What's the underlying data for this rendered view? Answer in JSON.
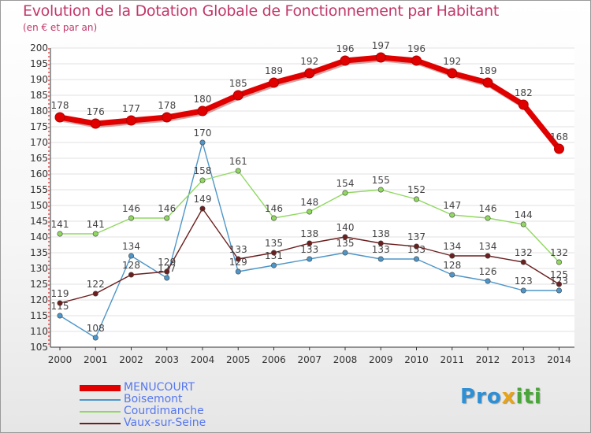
{
  "title": "Evolution de la Dotation Globale de Fonctionnement par Habitant",
  "subtitle": "(en € et par an)",
  "logo": {
    "p1": "Pro",
    "p2": "x",
    "p3": "iti"
  },
  "chart_data": {
    "type": "line",
    "title": "Evolution de la Dotation Globale de Fonctionnement par Habitant",
    "subtitle": "(en € et par an)",
    "xlabel": "",
    "ylabel": "",
    "x": [
      "2000",
      "2001",
      "2002",
      "2003",
      "2004",
      "2005",
      "2006",
      "2007",
      "2008",
      "2009",
      "2010",
      "2011",
      "2012",
      "2013",
      "2014"
    ],
    "ylim": [
      105,
      200
    ],
    "yticks": [
      105,
      110,
      115,
      120,
      125,
      130,
      135,
      140,
      145,
      150,
      155,
      160,
      165,
      170,
      175,
      180,
      185,
      190,
      195,
      200
    ],
    "grid": "horizontal",
    "legend": "bottom-left",
    "series": [
      {
        "name": "MENUCOURT",
        "color": "#e00000",
        "values": [
          178,
          176,
          177,
          178,
          180,
          185,
          189,
          192,
          196,
          197,
          196,
          192,
          189,
          182,
          168
        ]
      },
      {
        "name": "Boisemont",
        "color": "#4e96c8",
        "values": [
          115,
          108,
          134,
          127,
          170,
          129,
          131,
          133,
          135,
          133,
          133,
          128,
          126,
          123,
          123
        ]
      },
      {
        "name": "Courdimanche",
        "color": "#90d860",
        "values": [
          141,
          141,
          146,
          146,
          158,
          161,
          146,
          148,
          154,
          155,
          152,
          147,
          146,
          144,
          132
        ]
      },
      {
        "name": "Vaux-sur-Seine",
        "color": "#6b1f1f",
        "values": [
          119,
          122,
          128,
          129,
          149,
          133,
          135,
          138,
          140,
          138,
          137,
          134,
          134,
          132,
          125
        ]
      }
    ]
  }
}
